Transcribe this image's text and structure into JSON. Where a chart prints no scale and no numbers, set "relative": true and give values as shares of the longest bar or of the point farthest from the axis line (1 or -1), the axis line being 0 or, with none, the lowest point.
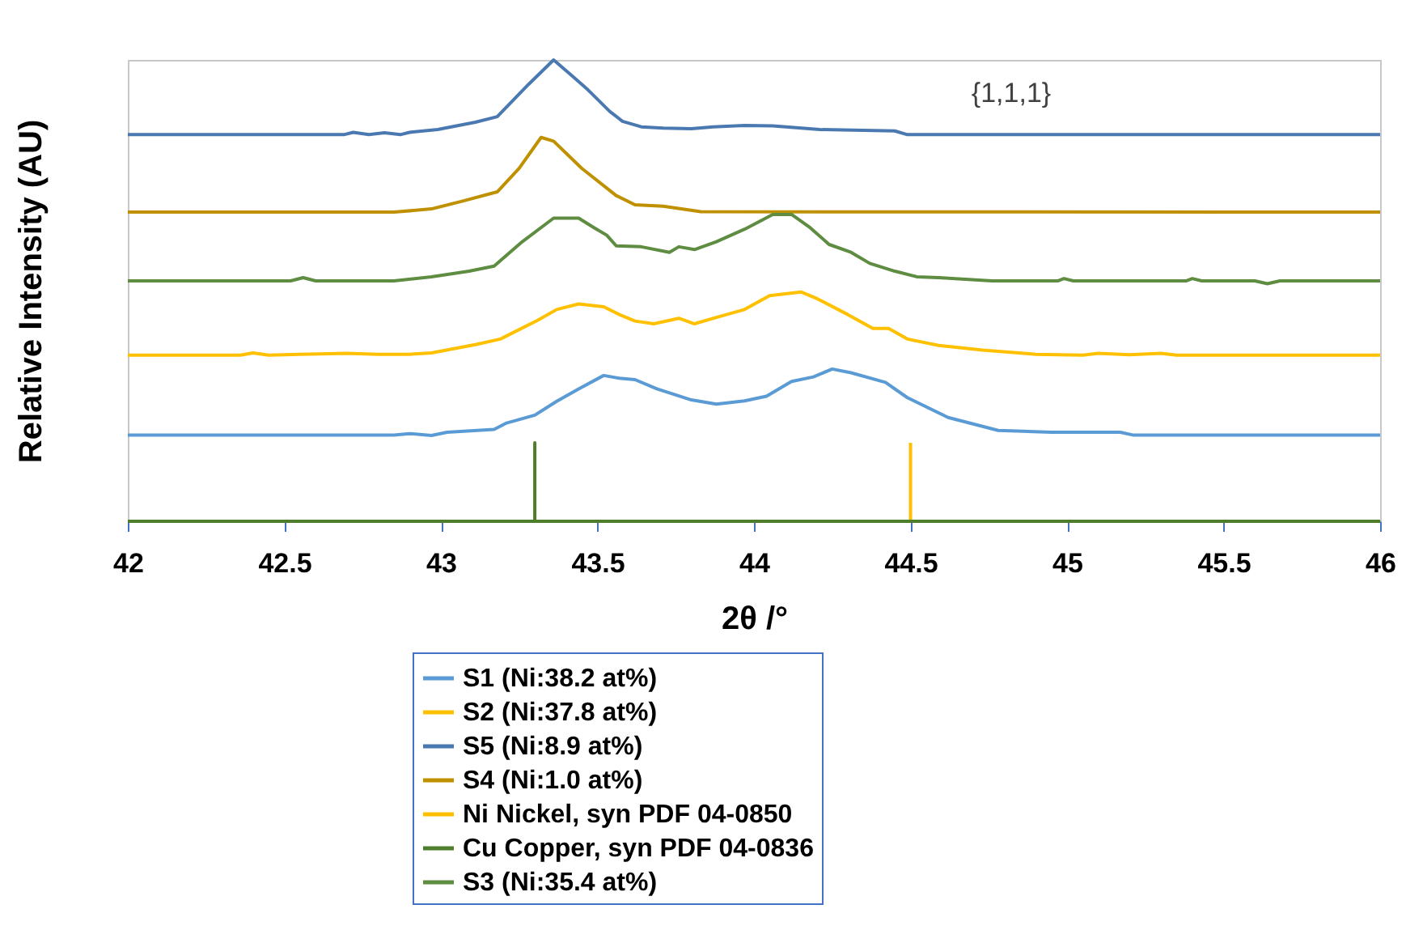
{
  "chart_data": {
    "type": "line",
    "xlabel": "2θ /°",
    "ylabel": "Relative Intensity (AU)",
    "relative": true,
    "xlim": [
      42,
      46
    ],
    "xticks": [
      42,
      42.5,
      43,
      43.5,
      44,
      44.5,
      45,
      45.5,
      46
    ],
    "legend": "bottom",
    "annotations": [
      "{1,1,1}"
    ],
    "series": [
      {
        "name": "S1 (Ni:38.2 at%)",
        "color": "#5b9bd5",
        "x": [
          42,
          42.85,
          42.9,
          42.97,
          43.02,
          43.17,
          43.21,
          43.3,
          43.37,
          43.44,
          43.52,
          43.57,
          43.62,
          43.69,
          43.8,
          43.88,
          43.97,
          44.04,
          44.12,
          44.19,
          44.25,
          44.31,
          44.42,
          44.49,
          44.62,
          44.78,
          44.95,
          45.17,
          45.21,
          46
        ],
        "values": [
          0.187,
          0.187,
          0.19,
          0.186,
          0.193,
          0.199,
          0.213,
          0.23,
          0.26,
          0.287,
          0.316,
          0.31,
          0.307,
          0.287,
          0.263,
          0.254,
          0.261,
          0.271,
          0.303,
          0.313,
          0.33,
          0.322,
          0.301,
          0.268,
          0.225,
          0.197,
          0.193,
          0.193,
          0.187,
          0.187
        ]
      },
      {
        "name": "S2 (Ni:37.8 at%)",
        "color": "#ffc000",
        "x": [
          42,
          42.36,
          42.4,
          42.45,
          42.55,
          42.7,
          42.8,
          42.9,
          42.97,
          43.11,
          43.19,
          43.31,
          43.37,
          43.44,
          43.52,
          43.57,
          43.62,
          43.68,
          43.76,
          43.81,
          43.88,
          43.97,
          44.05,
          44.15,
          44.2,
          44.3,
          44.38,
          44.43,
          44.49,
          44.59,
          44.73,
          44.9,
          45.05,
          45.1,
          45.2,
          45.3,
          45.35,
          46
        ],
        "values": [
          0.36,
          0.36,
          0.365,
          0.36,
          0.362,
          0.364,
          0.362,
          0.362,
          0.365,
          0.383,
          0.395,
          0.436,
          0.459,
          0.471,
          0.465,
          0.448,
          0.434,
          0.428,
          0.44,
          0.428,
          0.442,
          0.459,
          0.489,
          0.497,
          0.483,
          0.448,
          0.418,
          0.418,
          0.395,
          0.381,
          0.371,
          0.362,
          0.36,
          0.364,
          0.361,
          0.364,
          0.36,
          0.36
        ]
      },
      {
        "name": "S5 (Ni:8.9 at%)",
        "color": "#4a78b0",
        "x": [
          42,
          42.69,
          42.72,
          42.77,
          42.82,
          42.87,
          42.9,
          42.99,
          43.11,
          43.18,
          43.28,
          43.36,
          43.42,
          43.47,
          43.54,
          43.58,
          43.64,
          43.71,
          43.8,
          43.87,
          43.97,
          44.06,
          44.21,
          44.45,
          44.49,
          46
        ],
        "values": [
          0.838,
          0.838,
          0.843,
          0.838,
          0.842,
          0.838,
          0.843,
          0.849,
          0.865,
          0.877,
          0.947,
          1,
          0.965,
          0.935,
          0.888,
          0.867,
          0.855,
          0.852,
          0.851,
          0.855,
          0.858,
          0.857,
          0.849,
          0.846,
          0.838,
          0.838
        ]
      },
      {
        "name": "S4 (Ni:1.0 at%)",
        "color": "#bf9000",
        "x": [
          42,
          42.85,
          42.97,
          43.07,
          43.18,
          43.25,
          43.32,
          43.36,
          43.45,
          43.56,
          43.62,
          43.71,
          43.83,
          46
        ],
        "values": [
          0.67,
          0.67,
          0.677,
          0.694,
          0.714,
          0.765,
          0.832,
          0.824,
          0.765,
          0.706,
          0.686,
          0.683,
          0.671,
          0.67
        ]
      },
      {
        "name": "Ni Nickel, syn PDF 04-0850",
        "color": "#ffbf00",
        "x": [
          44.5,
          44.5
        ],
        "values": [
          0,
          0.17
        ]
      },
      {
        "name": "Cu Copper, syn PDF 04-0836",
        "color": "#4e7d2c",
        "x": [
          42,
          43.3,
          43.3,
          43.3,
          46
        ],
        "values": [
          0,
          0,
          0.17,
          0,
          0
        ]
      },
      {
        "name": "S3 (Ni:35.4 at%)",
        "color": "#5e8c41",
        "x": [
          42,
          42.52,
          42.56,
          42.6,
          42.85,
          42.97,
          43.09,
          43.17,
          43.26,
          43.36,
          43.44,
          43.49,
          43.53,
          43.56,
          43.64,
          43.73,
          43.76,
          43.81,
          43.88,
          43.97,
          44.06,
          44.12,
          44.18,
          44.24,
          44.31,
          44.37,
          44.45,
          44.52,
          44.59,
          44.76,
          44.97,
          44.99,
          45.02,
          45.38,
          45.4,
          45.43,
          45.6,
          45.64,
          45.68,
          46
        ],
        "values": [
          0.521,
          0.521,
          0.528,
          0.521,
          0.521,
          0.53,
          0.542,
          0.553,
          0.606,
          0.657,
          0.657,
          0.636,
          0.62,
          0.597,
          0.595,
          0.583,
          0.595,
          0.589,
          0.606,
          0.633,
          0.665,
          0.665,
          0.636,
          0.6,
          0.583,
          0.559,
          0.542,
          0.53,
          0.528,
          0.521,
          0.521,
          0.526,
          0.521,
          0.521,
          0.526,
          0.521,
          0.521,
          0.515,
          0.521,
          0.521
        ]
      }
    ]
  }
}
